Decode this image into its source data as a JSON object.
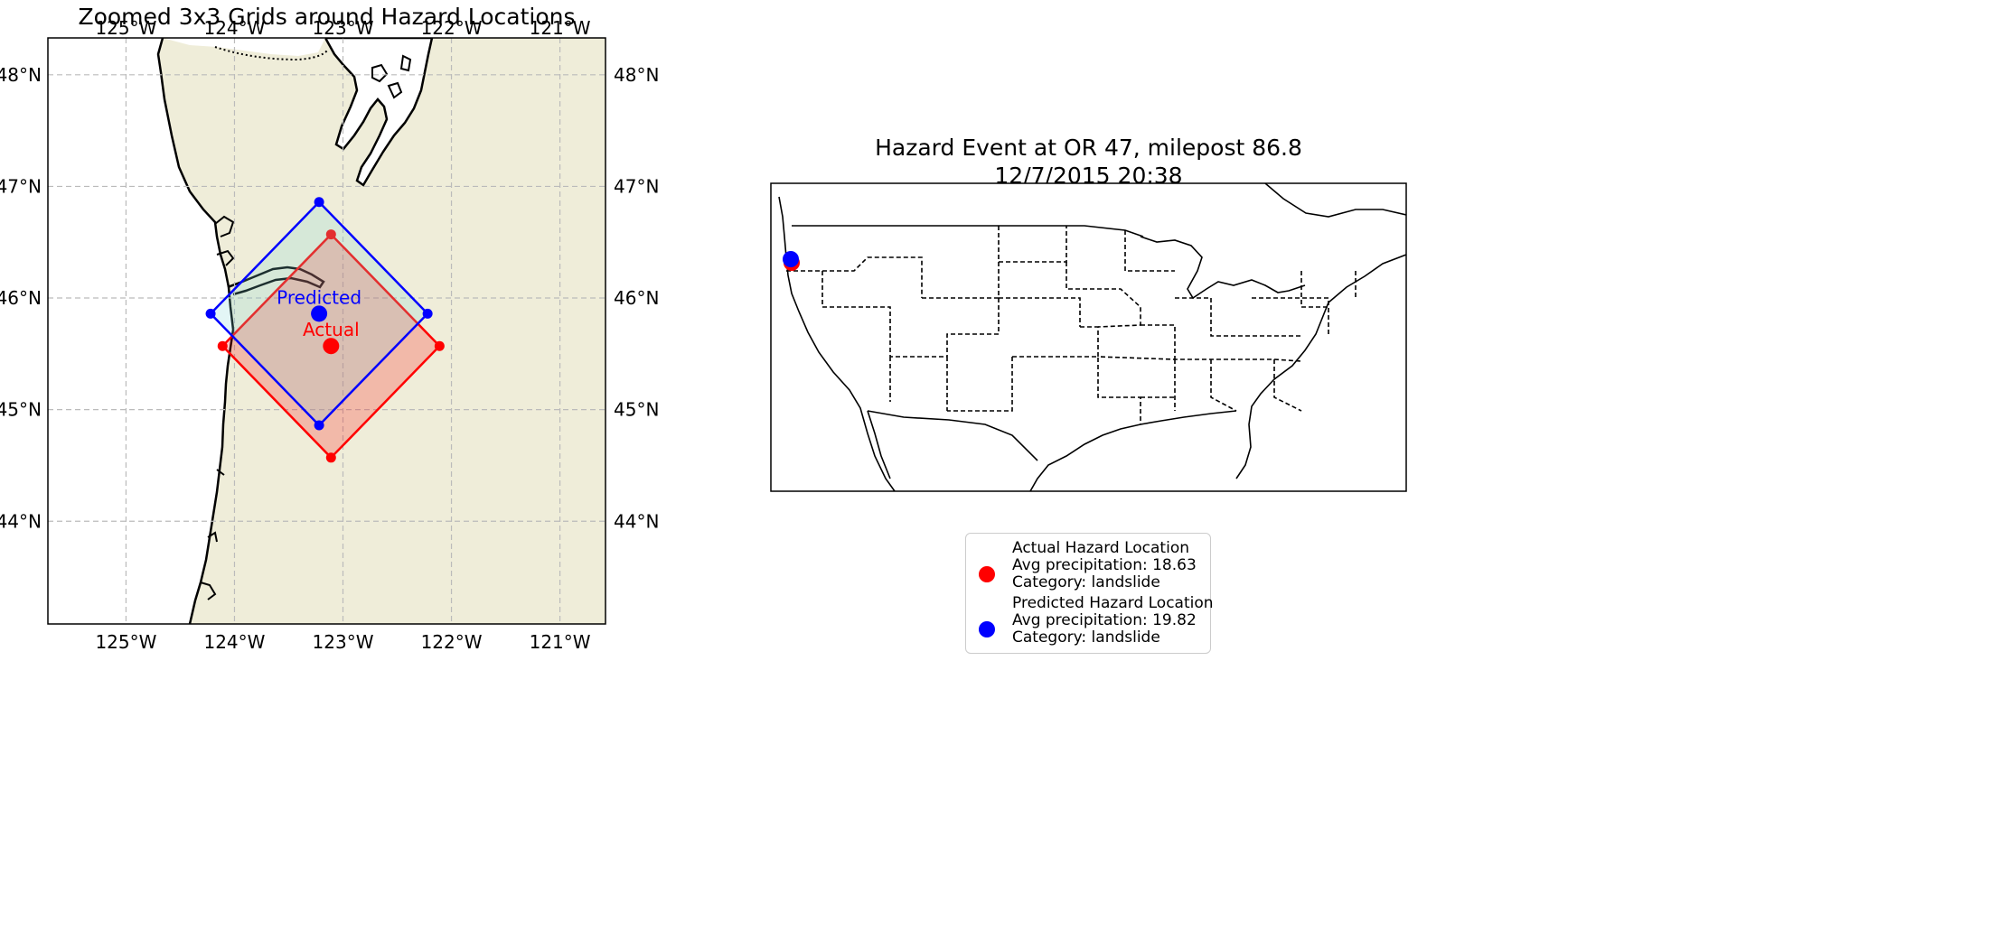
{
  "left_panel": {
    "title": "Zoomed 3x3 Grids around Hazard Locations",
    "x_ticks": [
      "125°W",
      "124°W",
      "123°W",
      "122°W",
      "121°W"
    ],
    "y_ticks": [
      "48°N",
      "47°N",
      "46°N",
      "45°N",
      "44°N"
    ],
    "extent": {
      "lon": [
        -125.72,
        -120.58
      ],
      "lat": [
        43.08,
        48.33
      ]
    },
    "grid": true,
    "land_color": "#efedd9",
    "water_color": "#ffffff",
    "predicted_label": "Predicted",
    "actual_label": "Actual",
    "predicted_point": {
      "lon": -123.22,
      "lat": 45.86
    },
    "actual_point": {
      "lon": -123.11,
      "lat": 45.57
    },
    "predicted_grid": {
      "north": [
        -123.22,
        46.86
      ],
      "east": [
        -122.22,
        45.86
      ],
      "south": [
        -123.22,
        44.86
      ],
      "west": [
        -124.22,
        45.86
      ]
    },
    "actual_grid": {
      "north": [
        -123.11,
        46.57
      ],
      "east": [
        -122.11,
        45.57
      ],
      "south": [
        -123.11,
        44.57
      ],
      "west": [
        -124.11,
        45.57
      ]
    }
  },
  "right_panel": {
    "title_line1": "Hazard Event at OR 47, milepost 86.8",
    "title_line2": "12/7/2015 20:38"
  },
  "legend": {
    "items": [
      {
        "name": "Actual Hazard Location",
        "precip": "Avg precipitation: 18.63",
        "category": "Category: landslide",
        "color": "#ff0000"
      },
      {
        "name": "Predicted Hazard Location",
        "precip": "Avg precipitation: 19.82",
        "category": "Category: landslide",
        "color": "#0000ff"
      }
    ]
  },
  "colors": {
    "actual": "#ff0000",
    "predicted": "#0000ff"
  }
}
